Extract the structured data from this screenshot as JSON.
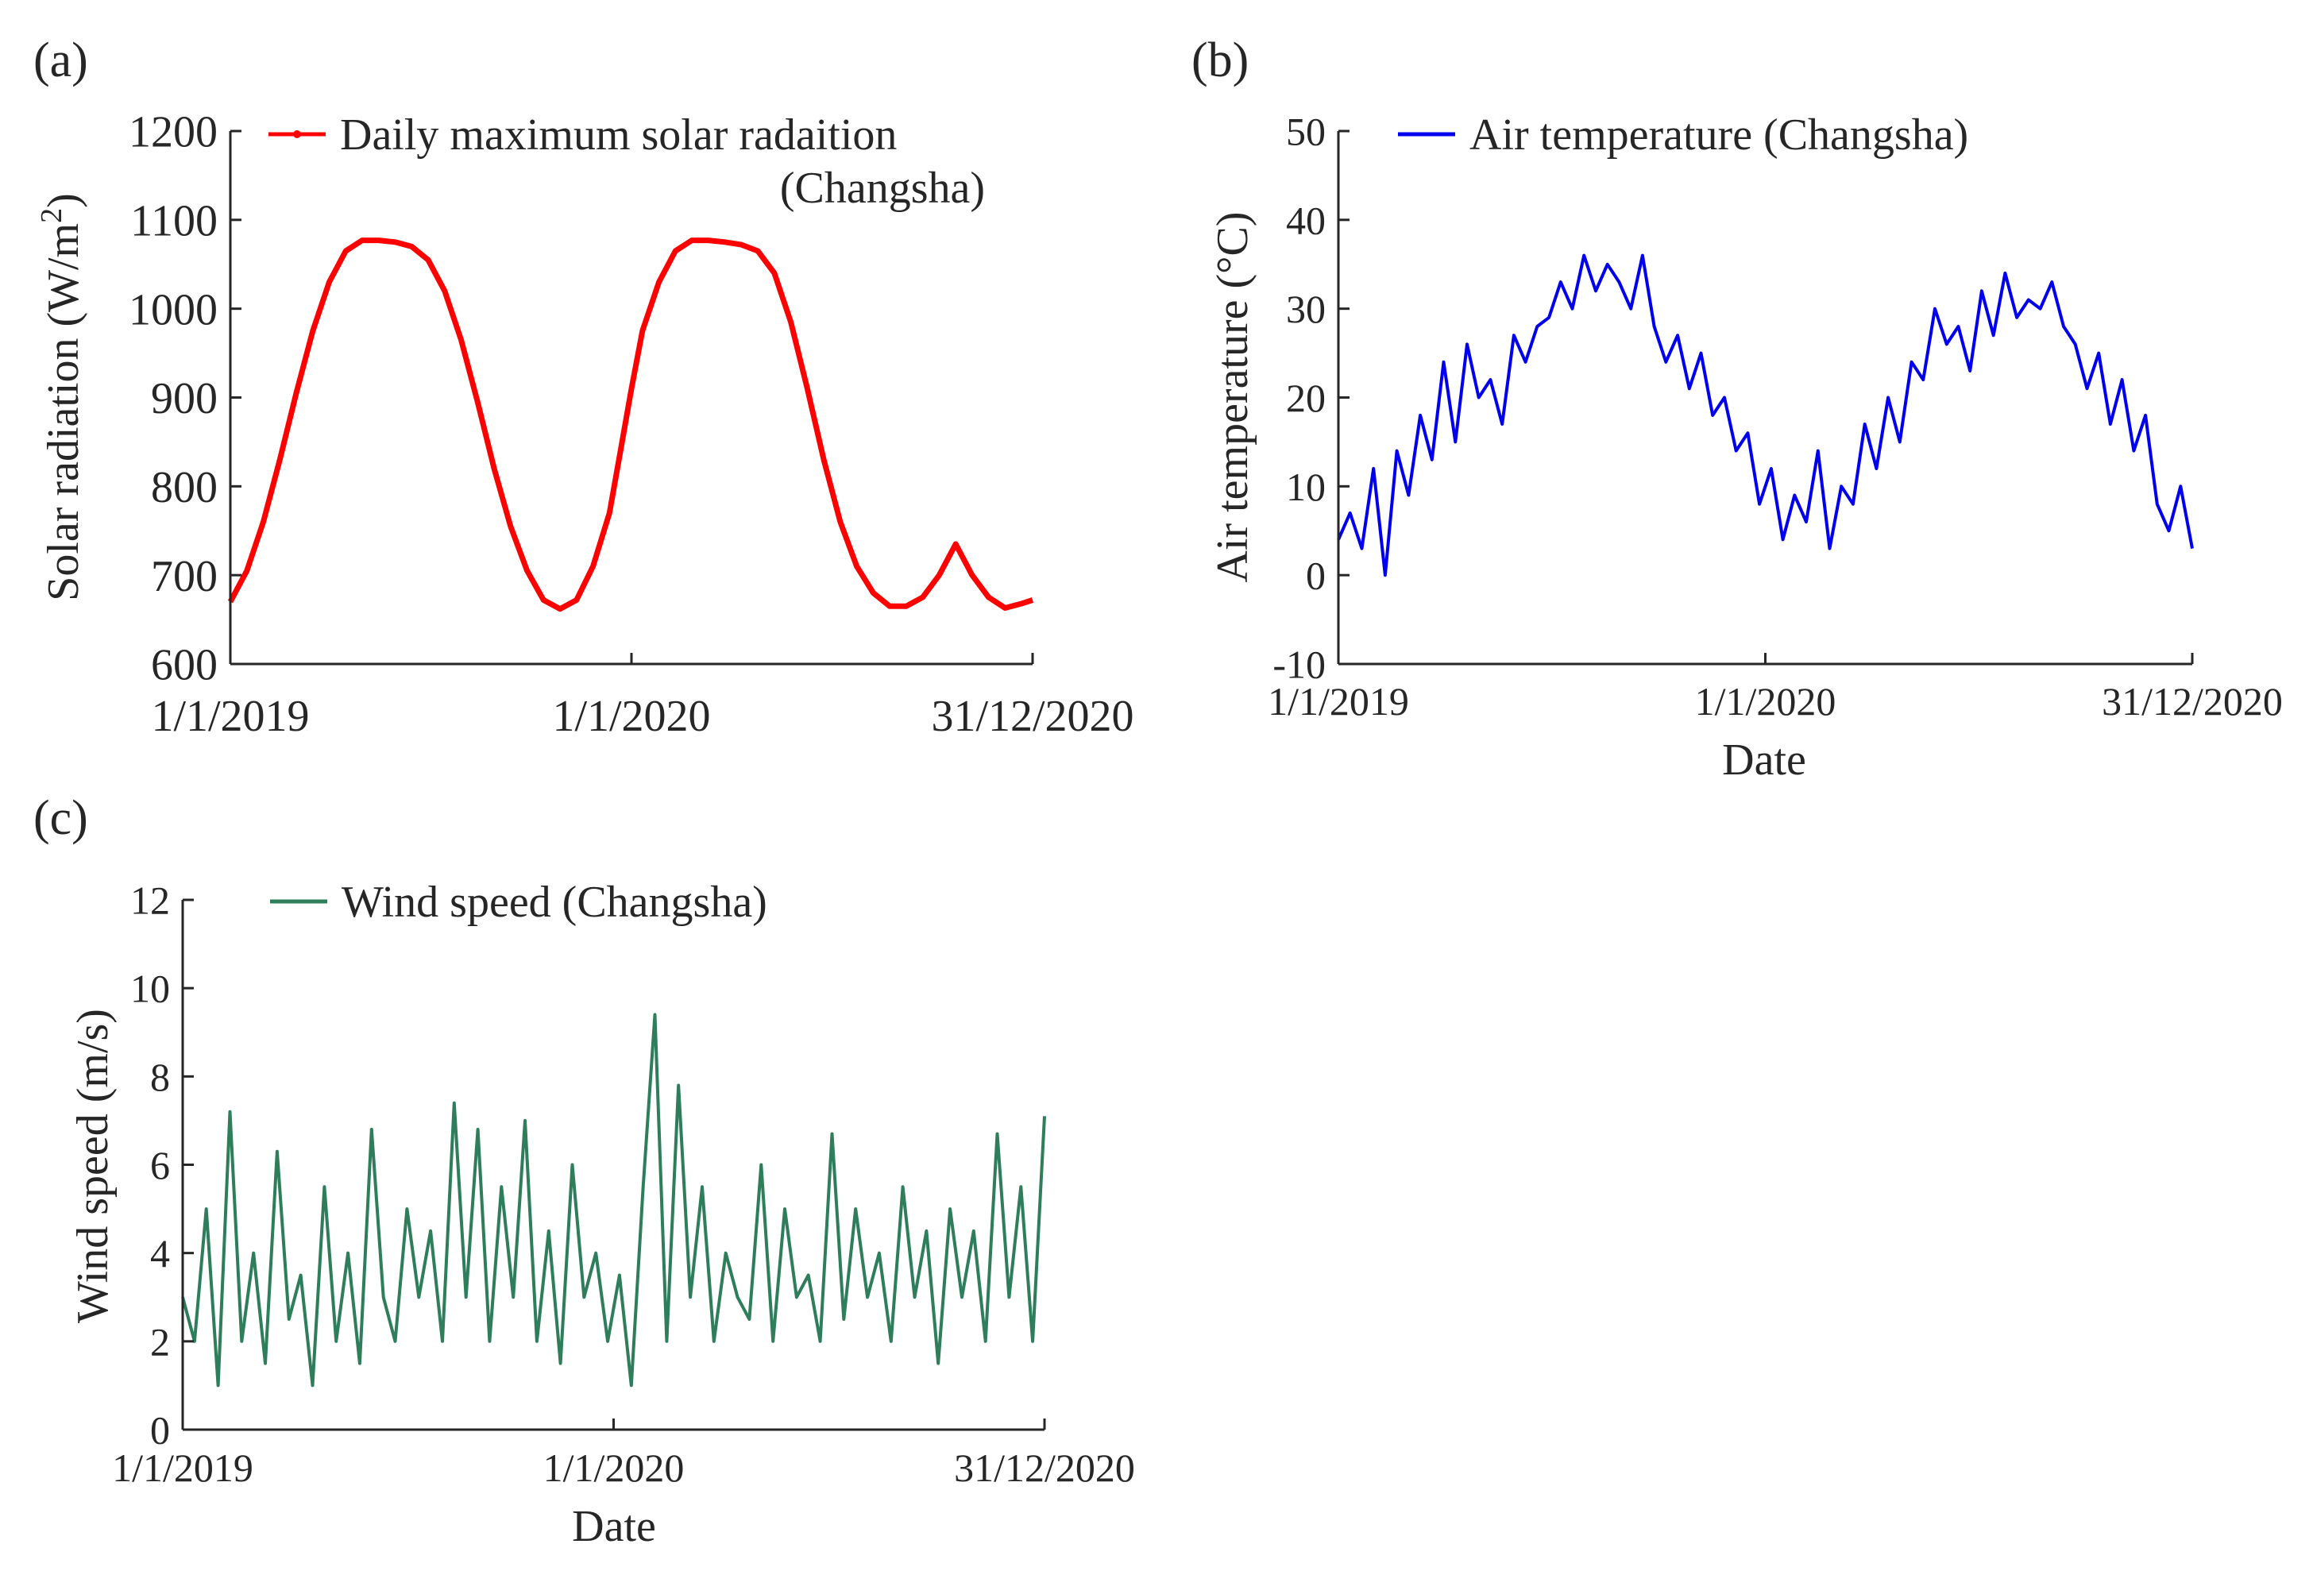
{
  "colors": {
    "axis": "#262626",
    "text": "#262626",
    "solar": "#ff0000",
    "temp": "#0000ee",
    "wind": "#2e7d5b"
  },
  "chart_data": [
    {
      "panel_label": "(a)",
      "type": "line",
      "title": "",
      "xlabel": "",
      "ylabel": "Solar radiation (W/m",
      "ylabel_sup": "2",
      "ylabel_close": ")",
      "x_ticks": [
        "1/1/2019",
        "1/1/2020",
        "31/12/2020"
      ],
      "x_tick_days": [
        0,
        365,
        730
      ],
      "xlim": [
        0,
        730
      ],
      "ylim": [
        600,
        1200
      ],
      "y_ticks": [
        600,
        700,
        800,
        900,
        1000,
        1100,
        1200
      ],
      "legend_location": "top-center",
      "series": [
        {
          "name": "Daily maximum solar radaition",
          "name_line2": "(Changsha)",
          "color": "#ff0000",
          "marker": "dot",
          "x": [
            0,
            15,
            30,
            45,
            60,
            75,
            90,
            105,
            120,
            135,
            150,
            165,
            180,
            195,
            210,
            225,
            240,
            255,
            270,
            285,
            300,
            315,
            330,
            345,
            355,
            365,
            375,
            390,
            405,
            420,
            435,
            450,
            465,
            480,
            495,
            510,
            525,
            540,
            555,
            570,
            585,
            600,
            615,
            630,
            645,
            660,
            675,
            690,
            705,
            720,
            730
          ],
          "values": [
            670,
            705,
            760,
            830,
            905,
            975,
            1030,
            1065,
            1077,
            1077,
            1075,
            1070,
            1055,
            1020,
            965,
            895,
            820,
            755,
            705,
            672,
            662,
            672,
            710,
            770,
            840,
            910,
            975,
            1030,
            1065,
            1077,
            1077,
            1075,
            1072,
            1065,
            1040,
            985,
            910,
            830,
            760,
            710,
            680,
            665,
            665,
            675,
            700,
            735,
            700,
            675,
            663,
            668,
            672
          ]
        }
      ]
    },
    {
      "panel_label": "(b)",
      "type": "line",
      "title": "",
      "xlabel": "Date",
      "ylabel": "Air temperature (°C)",
      "x_ticks": [
        "1/1/2019",
        "1/1/2020",
        "31/12/2020"
      ],
      "x_tick_days": [
        0,
        365,
        730
      ],
      "xlim": [
        0,
        730
      ],
      "ylim": [
        -10,
        50
      ],
      "y_ticks": [
        -10,
        0,
        10,
        20,
        30,
        40,
        50
      ],
      "legend_location": "top-center",
      "series": [
        {
          "name": "Air temperature (Changsha)",
          "color": "#0000ee",
          "x": [
            0,
            10,
            20,
            30,
            40,
            50,
            60,
            70,
            80,
            90,
            100,
            110,
            120,
            130,
            140,
            150,
            160,
            170,
            180,
            190,
            200,
            210,
            220,
            230,
            240,
            250,
            260,
            270,
            280,
            290,
            300,
            310,
            320,
            330,
            340,
            350,
            360,
            370,
            380,
            390,
            400,
            410,
            420,
            430,
            440,
            450,
            460,
            470,
            480,
            490,
            500,
            510,
            520,
            530,
            540,
            550,
            560,
            570,
            580,
            590,
            600,
            610,
            620,
            630,
            640,
            650,
            660,
            670,
            680,
            690,
            700,
            710,
            720,
            730
          ],
          "values": [
            4,
            7,
            3,
            12,
            0,
            14,
            9,
            18,
            13,
            24,
            15,
            26,
            20,
            22,
            17,
            27,
            24,
            28,
            29,
            33,
            30,
            36,
            32,
            35,
            33,
            30,
            36,
            28,
            24,
            27,
            21,
            25,
            18,
            20,
            14,
            16,
            8,
            12,
            4,
            9,
            6,
            14,
            3,
            10,
            8,
            17,
            12,
            20,
            15,
            24,
            22,
            30,
            26,
            28,
            23,
            32,
            27,
            34,
            29,
            31,
            30,
            33,
            28,
            26,
            21,
            25,
            17,
            22,
            14,
            18,
            8,
            5,
            10,
            3
          ]
        }
      ]
    },
    {
      "panel_label": "(c)",
      "type": "line",
      "title": "",
      "xlabel": "Date",
      "ylabel": "Wind speed (m/s)",
      "x_ticks": [
        "1/1/2019",
        "1/1/2020",
        "31/12/2020"
      ],
      "x_tick_days": [
        0,
        365,
        730
      ],
      "xlim": [
        0,
        730
      ],
      "ylim": [
        0,
        12
      ],
      "y_ticks": [
        0,
        2,
        4,
        6,
        8,
        10,
        12
      ],
      "legend_location": "top-center",
      "series": [
        {
          "name": "Wind speed (Changsha)",
          "color": "#2e7d5b",
          "x": [
            0,
            10,
            20,
            30,
            40,
            50,
            60,
            70,
            80,
            90,
            100,
            110,
            120,
            130,
            140,
            150,
            160,
            170,
            180,
            190,
            200,
            210,
            220,
            230,
            240,
            250,
            260,
            270,
            280,
            290,
            300,
            310,
            320,
            330,
            340,
            350,
            360,
            370,
            380,
            390,
            400,
            410,
            420,
            430,
            440,
            450,
            460,
            470,
            480,
            490,
            500,
            510,
            520,
            530,
            540,
            550,
            560,
            570,
            580,
            590,
            600,
            610,
            620,
            630,
            640,
            650,
            660,
            670,
            680,
            690,
            700,
            710,
            720,
            730
          ],
          "values": [
            3,
            2,
            5,
            1,
            7.2,
            2,
            4,
            1.5,
            6.3,
            2.5,
            3.5,
            1,
            5.5,
            2,
            4,
            1.5,
            6.8,
            3,
            2,
            5,
            3,
            4.5,
            2,
            7.4,
            3,
            6.8,
            2,
            5.5,
            3,
            7,
            2,
            4.5,
            1.5,
            6,
            3,
            4,
            2,
            3.5,
            1,
            5.5,
            9.4,
            2,
            7.8,
            3,
            5.5,
            2,
            4,
            3,
            2.5,
            6,
            2,
            5,
            3,
            3.5,
            2,
            6.7,
            2.5,
            5,
            3,
            4,
            2,
            5.5,
            3,
            4.5,
            1.5,
            5,
            3,
            4.5,
            2,
            6.7,
            3,
            5.5,
            2,
            7.1
          ]
        }
      ]
    }
  ]
}
